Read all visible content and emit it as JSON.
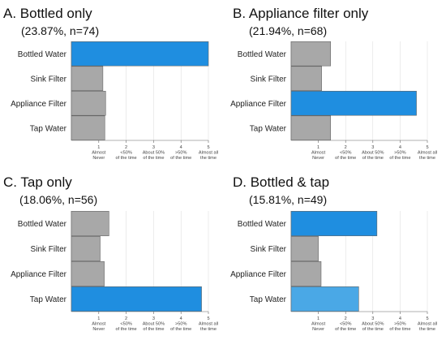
{
  "chart_data": [
    {
      "type": "bar",
      "orientation": "horizontal",
      "title": "A. Bottled only",
      "subtitle": "(23.87%, n=74)",
      "categories": [
        "Bottled Water",
        "Sink Filter",
        "Appliance Filter",
        "Tap Water"
      ],
      "values": [
        5.0,
        1.15,
        1.25,
        1.22
      ],
      "colors": [
        "#1f8ee0",
        "#a8a8a8",
        "#a8a8a8",
        "#a8a8a8"
      ],
      "xlim": [
        0,
        5
      ],
      "xticks": [
        {
          "value": 1,
          "lines": [
            "1",
            "Almost",
            "Never"
          ]
        },
        {
          "value": 2,
          "lines": [
            "2",
            "<50%",
            "of the time"
          ]
        },
        {
          "value": 3,
          "lines": [
            "3",
            "About 50%",
            "of the time"
          ]
        },
        {
          "value": 4,
          "lines": [
            "4",
            ">50%",
            "of the time"
          ]
        },
        {
          "value": 5,
          "lines": [
            "5",
            "Almost all",
            "the time"
          ]
        }
      ]
    },
    {
      "type": "bar",
      "orientation": "horizontal",
      "title": "B. Appliance filter only",
      "subtitle": "(21.94%, n=68)",
      "categories": [
        "Bottled Water",
        "Sink Filter",
        "Appliance Filter",
        "Tap Water"
      ],
      "values": [
        1.45,
        1.12,
        4.6,
        1.45
      ],
      "colors": [
        "#a8a8a8",
        "#a8a8a8",
        "#1f8ee0",
        "#a8a8a8"
      ],
      "xlim": [
        0,
        5
      ],
      "xticks": [
        {
          "value": 1,
          "lines": [
            "1",
            "Almost",
            "Never"
          ]
        },
        {
          "value": 2,
          "lines": [
            "2",
            "<50%",
            "of the time"
          ]
        },
        {
          "value": 3,
          "lines": [
            "3",
            "About 50%",
            "of the time"
          ]
        },
        {
          "value": 4,
          "lines": [
            "4",
            ">50%",
            "of the time"
          ]
        },
        {
          "value": 5,
          "lines": [
            "5",
            "Almost all",
            "the time"
          ]
        }
      ]
    },
    {
      "type": "bar",
      "orientation": "horizontal",
      "title": "C. Tap only",
      "subtitle": "(18.06%, n=56)",
      "categories": [
        "Bottled Water",
        "Sink Filter",
        "Appliance Filter",
        "Tap Water"
      ],
      "values": [
        1.37,
        1.05,
        1.2,
        4.75
      ],
      "colors": [
        "#a8a8a8",
        "#a8a8a8",
        "#a8a8a8",
        "#1f8ee0"
      ],
      "xlim": [
        0,
        5
      ],
      "xticks": [
        {
          "value": 1,
          "lines": [
            "1",
            "Almost",
            "Never"
          ]
        },
        {
          "value": 2,
          "lines": [
            "2",
            "<50%",
            "of the time"
          ]
        },
        {
          "value": 3,
          "lines": [
            "3",
            "About 50%",
            "of the time"
          ]
        },
        {
          "value": 4,
          "lines": [
            "4",
            ">50%",
            "of the time"
          ]
        },
        {
          "value": 5,
          "lines": [
            "5",
            "Almost all",
            "the time"
          ]
        }
      ]
    },
    {
      "type": "bar",
      "orientation": "horizontal",
      "title": "D. Bottled & tap",
      "subtitle": "(15.81%, n=49)",
      "categories": [
        "Bottled Water",
        "Sink Filter",
        "Appliance Filter",
        "Tap Water"
      ],
      "values": [
        3.15,
        1.0,
        1.1,
        2.48
      ],
      "colors": [
        "#1f8ee0",
        "#a8a8a8",
        "#a8a8a8",
        "#4aa8e6"
      ],
      "xlim": [
        0,
        5
      ],
      "xticks": [
        {
          "value": 1,
          "lines": [
            "1",
            "Almost",
            "Never"
          ]
        },
        {
          "value": 2,
          "lines": [
            "2",
            "<50%",
            "of the time"
          ]
        },
        {
          "value": 3,
          "lines": [
            "3",
            "About 50%",
            "of the time"
          ]
        },
        {
          "value": 4,
          "lines": [
            "4",
            ">50%",
            "of the time"
          ]
        },
        {
          "value": 5,
          "lines": [
            "5",
            "Almost all",
            "the time"
          ]
        }
      ]
    }
  ]
}
